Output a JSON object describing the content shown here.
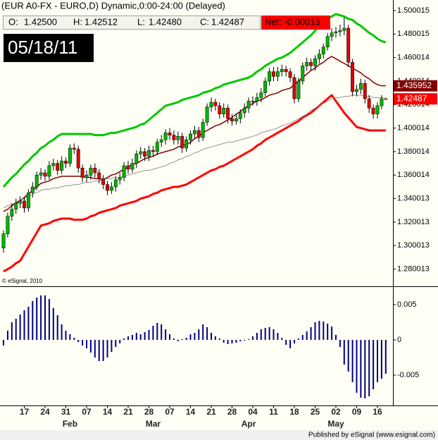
{
  "header": {
    "title": "(EUR A0-FX - EURO,D) Dynamic,0:00-24:00 (Delayed)",
    "ohlc": [
      {
        "label": "O:",
        "value": "1.42500"
      },
      {
        "label": "H:",
        "value": "1.42512"
      },
      {
        "label": "L:",
        "value": "1.42480"
      },
      {
        "label": "C:",
        "value": "1.42487"
      }
    ],
    "net": "Net:  -0.00013",
    "date": "05/18/11",
    "footer": "Published by eSignal (www.esignal.com)"
  },
  "chart_data": [
    {
      "type": "candlestick",
      "annotation": "© eSignal, 2010",
      "up_color": "#00b400",
      "down_color": "#e00000",
      "ylim": [
        1.266,
        1.509
      ],
      "yticks": [
        1.500015,
        1.480015,
        1.460014,
        1.440014,
        1.420014,
        1.400014,
        1.380014,
        1.360014,
        1.340013,
        1.320013,
        1.300013,
        1.280013
      ],
      "open": [
        1.298,
        1.31,
        1.325,
        1.331,
        1.336,
        1.338,
        1.332,
        1.345,
        1.35,
        1.36,
        1.362,
        1.359,
        1.368,
        1.37,
        1.364,
        1.372,
        1.37,
        1.383,
        1.382,
        1.366,
        1.358,
        1.36,
        1.366,
        1.362,
        1.357,
        1.352,
        1.347,
        1.35,
        1.356,
        1.358,
        1.368,
        1.365,
        1.37,
        1.378,
        1.38,
        1.376,
        1.381,
        1.38,
        1.388,
        1.39,
        1.396,
        1.394,
        1.39,
        1.393,
        1.383,
        1.39,
        1.395,
        1.398,
        1.392,
        1.405,
        1.418,
        1.422,
        1.419,
        1.412,
        1.417,
        1.408,
        1.406,
        1.408,
        1.413,
        1.417,
        1.423,
        1.423,
        1.426,
        1.43,
        1.44,
        1.448,
        1.444,
        1.448,
        1.45,
        1.448,
        1.443,
        1.425,
        1.44,
        1.453,
        1.456,
        1.453,
        1.459,
        1.463,
        1.469,
        1.478,
        1.481,
        1.482,
        1.483,
        1.485,
        1.456,
        1.431,
        1.433,
        1.438,
        1.425,
        1.417,
        1.412,
        1.419,
        1.425
      ],
      "high": [
        1.313,
        1.328,
        1.336,
        1.34,
        1.342,
        1.341,
        1.348,
        1.354,
        1.363,
        1.366,
        1.365,
        1.372,
        1.374,
        1.373,
        1.376,
        1.375,
        1.386,
        1.387,
        1.385,
        1.369,
        1.364,
        1.369,
        1.37,
        1.365,
        1.36,
        1.355,
        1.354,
        1.359,
        1.362,
        1.371,
        1.372,
        1.374,
        1.381,
        1.384,
        1.383,
        1.385,
        1.385,
        1.391,
        1.394,
        1.399,
        1.4,
        1.398,
        1.397,
        1.396,
        1.393,
        1.398,
        1.402,
        1.401,
        1.408,
        1.421,
        1.426,
        1.425,
        1.422,
        1.421,
        1.42,
        1.412,
        1.412,
        1.416,
        1.421,
        1.426,
        1.427,
        1.43,
        1.434,
        1.443,
        1.451,
        1.452,
        1.452,
        1.454,
        1.453,
        1.451,
        1.446,
        1.443,
        1.456,
        1.46,
        1.459,
        1.462,
        1.467,
        1.472,
        1.481,
        1.485,
        1.486,
        1.488,
        1.494,
        1.488,
        1.459,
        1.437,
        1.442,
        1.441,
        1.428,
        1.42,
        1.422,
        1.428,
        1.42512
      ],
      "low": [
        1.294,
        1.307,
        1.321,
        1.327,
        1.332,
        1.328,
        1.329,
        1.341,
        1.347,
        1.356,
        1.355,
        1.356,
        1.364,
        1.36,
        1.361,
        1.366,
        1.367,
        1.378,
        1.362,
        1.354,
        1.354,
        1.356,
        1.358,
        1.353,
        1.348,
        1.343,
        1.344,
        1.346,
        1.352,
        1.355,
        1.361,
        1.362,
        1.366,
        1.374,
        1.372,
        1.372,
        1.376,
        1.377,
        1.384,
        1.386,
        1.39,
        1.386,
        1.386,
        1.379,
        1.38,
        1.386,
        1.391,
        1.388,
        1.389,
        1.402,
        1.414,
        1.415,
        1.408,
        1.409,
        1.404,
        1.402,
        1.403,
        1.404,
        1.409,
        1.413,
        1.419,
        1.419,
        1.422,
        1.427,
        1.436,
        1.44,
        1.44,
        1.444,
        1.444,
        1.439,
        1.421,
        1.422,
        1.437,
        1.449,
        1.449,
        1.449,
        1.455,
        1.459,
        1.466,
        1.474,
        1.477,
        1.478,
        1.479,
        1.452,
        1.427,
        1.427,
        1.429,
        1.421,
        1.413,
        1.408,
        1.408,
        1.416,
        1.4248
      ],
      "close": [
        1.31,
        1.325,
        1.331,
        1.336,
        1.338,
        1.332,
        1.345,
        1.35,
        1.36,
        1.362,
        1.359,
        1.368,
        1.37,
        1.364,
        1.372,
        1.37,
        1.383,
        1.382,
        1.366,
        1.358,
        1.36,
        1.366,
        1.362,
        1.357,
        1.352,
        1.347,
        1.35,
        1.356,
        1.358,
        1.368,
        1.365,
        1.37,
        1.378,
        1.38,
        1.376,
        1.381,
        1.38,
        1.388,
        1.39,
        1.396,
        1.394,
        1.39,
        1.393,
        1.383,
        1.39,
        1.395,
        1.398,
        1.392,
        1.405,
        1.418,
        1.422,
        1.419,
        1.412,
        1.417,
        1.408,
        1.406,
        1.408,
        1.413,
        1.417,
        1.423,
        1.423,
        1.426,
        1.43,
        1.44,
        1.448,
        1.444,
        1.448,
        1.45,
        1.448,
        1.443,
        1.425,
        1.44,
        1.453,
        1.456,
        1.453,
        1.459,
        1.463,
        1.469,
        1.478,
        1.481,
        1.482,
        1.483,
        1.485,
        1.456,
        1.431,
        1.433,
        1.438,
        1.425,
        1.417,
        1.412,
        1.419,
        1.425,
        1.42487
      ],
      "lines": [
        {
          "color": "#00c800",
          "width": 3,
          "values": [
            1.35,
            1.354,
            1.358,
            1.361,
            1.365,
            1.369,
            1.372,
            1.376,
            1.379,
            1.383,
            1.385,
            1.388,
            1.39,
            1.393,
            1.395,
            1.395,
            1.395,
            1.395,
            1.395,
            1.395,
            1.395,
            1.395,
            1.394,
            1.394,
            1.394,
            1.395,
            1.396,
            1.396,
            1.397,
            1.398,
            1.399,
            1.4,
            1.401,
            1.403,
            1.404,
            1.407,
            1.41,
            1.413,
            1.416,
            1.419,
            1.42,
            1.421,
            1.422,
            1.424,
            1.425,
            1.426,
            1.427,
            1.428,
            1.43,
            1.431,
            1.432,
            1.434,
            1.435,
            1.437,
            1.438,
            1.439,
            1.44,
            1.441,
            1.442,
            1.443,
            1.445,
            1.448,
            1.45,
            1.453,
            1.455,
            1.457,
            1.459,
            1.46,
            1.462,
            1.464,
            1.467,
            1.47,
            1.473,
            1.476,
            1.479,
            1.483,
            1.487,
            1.491,
            1.493,
            1.495,
            1.497,
            1.496,
            1.495,
            1.493,
            1.492,
            1.489,
            1.487,
            1.484,
            1.481,
            1.479,
            1.476,
            1.474,
            1.473
          ]
        },
        {
          "color": "#800000",
          "width": 1.5,
          "values": [
            1.329,
            1.331,
            1.334,
            1.336,
            1.338,
            1.341,
            1.344,
            1.347,
            1.35,
            1.353,
            1.354,
            1.355,
            1.357,
            1.358,
            1.359,
            1.359,
            1.359,
            1.359,
            1.359,
            1.359,
            1.358,
            1.358,
            1.357,
            1.357,
            1.356,
            1.358,
            1.36,
            1.361,
            1.363,
            1.365,
            1.367,
            1.369,
            1.37,
            1.372,
            1.374,
            1.375,
            1.376,
            1.378,
            1.379,
            1.38,
            1.381,
            1.382,
            1.384,
            1.385,
            1.386,
            1.388,
            1.391,
            1.393,
            1.396,
            1.398,
            1.4,
            1.402,
            1.403,
            1.405,
            1.407,
            1.409,
            1.412,
            1.414,
            1.417,
            1.419,
            1.421,
            1.423,
            1.424,
            1.426,
            1.428,
            1.429,
            1.43,
            1.432,
            1.433,
            1.434,
            1.437,
            1.44,
            1.443,
            1.446,
            1.449,
            1.451,
            1.454,
            1.456,
            1.459,
            1.461,
            1.459,
            1.457,
            1.455,
            1.453,
            1.451,
            1.449,
            1.447,
            1.444,
            1.442,
            1.439,
            1.437,
            1.436,
            1.436
          ]
        },
        {
          "color": "#ff0000",
          "width": 3,
          "values": [
            1.278,
            1.28,
            1.282,
            1.285,
            1.287,
            1.293,
            1.299,
            1.305,
            1.311,
            1.317,
            1.318,
            1.319,
            1.321,
            1.322,
            1.323,
            1.323,
            1.323,
            1.322,
            1.322,
            1.322,
            1.323,
            1.325,
            1.326,
            1.328,
            1.329,
            1.33,
            1.331,
            1.332,
            1.334,
            1.335,
            1.336,
            1.337,
            1.338,
            1.34,
            1.341,
            1.342,
            1.344,
            1.345,
            1.347,
            1.348,
            1.349,
            1.35,
            1.35,
            1.351,
            1.352,
            1.354,
            1.356,
            1.358,
            1.36,
            1.362,
            1.364,
            1.365,
            1.367,
            1.368,
            1.37,
            1.372,
            1.374,
            1.376,
            1.378,
            1.38,
            1.382,
            1.385,
            1.387,
            1.39,
            1.392,
            1.394,
            1.396,
            1.398,
            1.4,
            1.402,
            1.404,
            1.406,
            1.409,
            1.411,
            1.413,
            1.416,
            1.419,
            1.422,
            1.425,
            1.428,
            1.423,
            1.418,
            1.413,
            1.409,
            1.405,
            1.401,
            1.4,
            1.399,
            1.398,
            1.398,
            1.398,
            1.398,
            1.398
          ]
        },
        {
          "color": "#909090",
          "width": 1,
          "values": [
            1.332,
            1.334,
            1.335,
            1.337,
            1.339,
            1.34,
            1.342,
            1.344,
            1.345,
            1.347,
            1.348,
            1.348,
            1.349,
            1.349,
            1.35,
            1.351,
            1.351,
            1.352,
            1.352,
            1.353,
            1.354,
            1.354,
            1.355,
            1.355,
            1.356,
            1.357,
            1.357,
            1.358,
            1.358,
            1.359,
            1.36,
            1.361,
            1.362,
            1.363,
            1.364,
            1.364,
            1.365,
            1.366,
            1.367,
            1.368,
            1.37,
            1.371,
            1.373,
            1.374,
            1.376,
            1.377,
            1.379,
            1.38,
            1.382,
            1.383,
            1.384,
            1.385,
            1.386,
            1.387,
            1.388,
            1.388,
            1.389,
            1.39,
            1.391,
            1.392,
            1.393,
            1.394,
            1.396,
            1.397,
            1.398,
            1.399,
            1.4,
            1.402,
            1.403,
            1.404,
            1.406,
            1.408,
            1.41,
            1.412,
            1.415,
            1.417,
            1.419,
            1.421,
            1.423,
            1.425,
            1.426,
            1.426,
            1.427,
            1.427,
            1.428,
            1.428,
            1.428,
            1.427,
            1.427,
            1.426,
            1.426,
            1.426,
            1.426
          ]
        }
      ],
      "price_markers": [
        {
          "value": 1.435952,
          "color": "#800000"
        },
        {
          "value": 1.42487,
          "color": "#ff0000"
        }
      ]
    },
    {
      "type": "bar",
      "color": "#000080",
      "ylim": [
        -0.0093,
        0.0074
      ],
      "yticks": [
        0.005,
        0,
        -0.005
      ],
      "categories": [
        null,
        null,
        null,
        null,
        null,
        "17",
        null,
        null,
        null,
        null,
        "24",
        null,
        null,
        null,
        null,
        "31",
        null,
        null,
        null,
        null,
        "07",
        null,
        null,
        null,
        null,
        "14",
        null,
        null,
        null,
        null,
        "21",
        null,
        null,
        null,
        null,
        "28",
        null,
        null,
        null,
        null,
        "07",
        null,
        null,
        null,
        null,
        "14",
        null,
        null,
        null,
        null,
        "21",
        null,
        null,
        null,
        null,
        "28",
        null,
        null,
        null,
        null,
        "04",
        null,
        null,
        null,
        null,
        "11",
        null,
        null,
        null,
        null,
        "18",
        null,
        null,
        null,
        null,
        "25",
        null,
        null,
        null,
        null,
        "02",
        null,
        null,
        null,
        null,
        "09",
        null,
        null,
        null,
        null,
        "16",
        null,
        null
      ],
      "months": [
        null,
        null,
        null,
        null,
        null,
        null,
        null,
        null,
        null,
        null,
        null,
        null,
        null,
        null,
        null,
        null,
        "Feb",
        null,
        null,
        null,
        null,
        null,
        null,
        null,
        null,
        null,
        null,
        null,
        null,
        null,
        null,
        null,
        null,
        null,
        null,
        null,
        "Mar",
        null,
        null,
        null,
        null,
        null,
        null,
        null,
        null,
        null,
        null,
        null,
        null,
        null,
        null,
        null,
        null,
        null,
        null,
        null,
        null,
        null,
        null,
        "Apr",
        null,
        null,
        null,
        null,
        null,
        null,
        null,
        null,
        null,
        null,
        null,
        null,
        null,
        null,
        null,
        null,
        null,
        null,
        null,
        null,
        "May",
        null,
        null,
        null,
        null,
        null,
        null,
        null,
        null,
        null,
        null,
        null,
        null
      ],
      "values": [
        -0.0008,
        0.0013,
        0.0025,
        0.003,
        0.0036,
        0.0042,
        0.0047,
        0.0055,
        0.006,
        0.0063,
        0.0063,
        0.0058,
        0.0045,
        0.0035,
        0.0022,
        0.0013,
        0.0008,
        0.0003,
        -0.0003,
        -0.0008,
        -0.0012,
        -0.0018,
        -0.0025,
        -0.003,
        -0.003,
        -0.0025,
        -0.0017,
        -0.001,
        -0.0005,
        0.0002,
        0.0005,
        0.0007,
        0.001,
        0.0008,
        0.0011,
        0.0014,
        0.002,
        0.0024,
        0.0022,
        0.0015,
        0.0008,
        0.0002,
        -0.0002,
        0.0001,
        0.0003,
        0.0008,
        0.001,
        0.0015,
        0.0022,
        0.0018,
        0.001,
        0.0005,
        0.0002,
        -0.0004,
        -0.0006,
        -0.0005,
        -0.0004,
        -0.0002,
        -0.0001,
        0.0001,
        0.0005,
        0.001,
        0.0015,
        0.0017,
        0.0018,
        0.0015,
        0.001,
        0.0003,
        -0.0007,
        -0.0012,
        -0.0005,
        0.0002,
        0.0007,
        0.0012,
        0.0018,
        0.0025,
        0.0027,
        0.0026,
        0.0023,
        0.0019,
        0.0007,
        -0.001,
        -0.0035,
        -0.0045,
        -0.006,
        -0.0075,
        -0.0082,
        -0.0083,
        -0.008,
        -0.007,
        -0.006,
        -0.0055,
        -0.0048
      ]
    }
  ]
}
